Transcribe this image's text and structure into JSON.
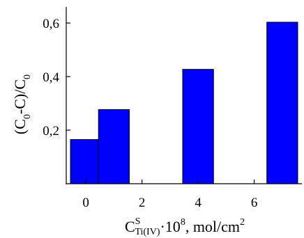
{
  "chart_data": {
    "type": "bar",
    "x": [
      0,
      1,
      4,
      7
    ],
    "values": [
      0.165,
      0.277,
      0.427,
      0.603
    ],
    "xlim": [
      -0.7,
      7.7
    ],
    "ylim": [
      0.0,
      0.66
    ],
    "xticks": [
      0,
      2,
      4,
      6
    ],
    "xtick_labels": [
      "0",
      "2",
      "4",
      "6"
    ],
    "yticks": [
      0.2,
      0.4,
      0.6
    ],
    "ytick_labels": [
      "0,2",
      "0,4",
      "0,6"
    ],
    "bar_color": "#0000FF",
    "edge_color": "#000000",
    "grid": false,
    "xlabel": {
      "base": "C",
      "sup": "S",
      "sub": "Ti(IV)",
      "mid": "·10",
      "mid_sup": "8",
      "tail": ", mol/cm",
      "tail_sup": "2"
    },
    "ylabel": {
      "p1": "(C",
      "s1": "0",
      "p2": "-C)/C",
      "s2": "0"
    }
  }
}
